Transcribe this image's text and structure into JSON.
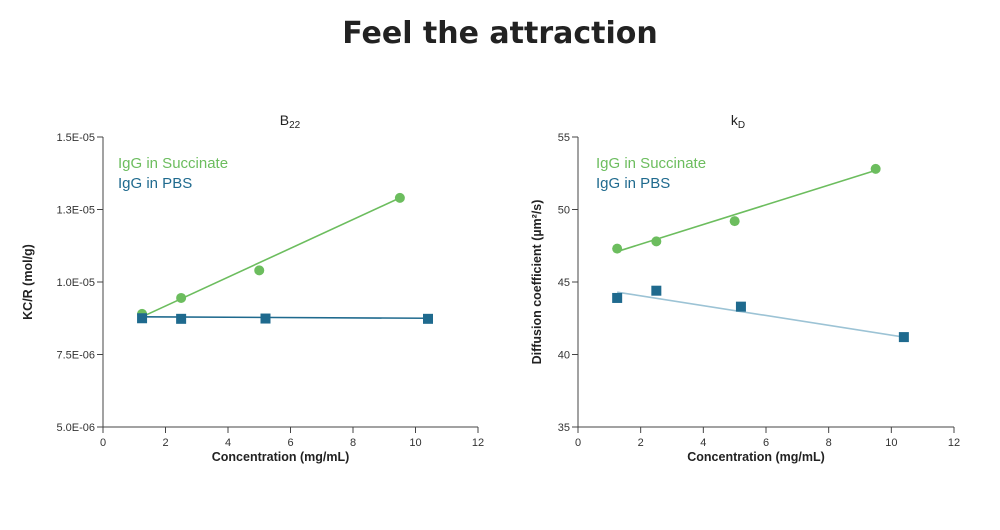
{
  "page": {
    "title": "Feel the attraction"
  },
  "chart_data": [
    {
      "type": "scatter",
      "title_main": "B",
      "title_sub": "22",
      "xlabel": "Concentration (mg/mL)",
      "ylabel": "KC/R (mol/g)",
      "xlim": [
        0,
        12
      ],
      "ylim": [
        5e-06,
        1.5e-05
      ],
      "x_ticks": [
        0,
        2,
        4,
        6,
        8,
        10,
        12
      ],
      "y_ticks": [
        5e-06,
        7.5e-06,
        1e-05,
        1.25e-05,
        1.5e-05
      ],
      "y_tick_labels": [
        "5.0E-06",
        "7.5E-06",
        "1.0E-05",
        "1.3E-05",
        "1.5E-05"
      ],
      "grid": false,
      "legend": "top-left",
      "series": [
        {
          "name": "IgG in Succinate",
          "color": "#6cbd5e",
          "marker": "circle",
          "x": [
            1.25,
            2.5,
            5.0,
            9.5
          ],
          "y": [
            8.9e-06,
            9.45e-06,
            1.04e-05,
            1.29e-05
          ],
          "fit": [
            [
              1.25,
              8.8e-06
            ],
            [
              9.5,
              1.29e-05
            ]
          ]
        },
        {
          "name": "IgG in PBS",
          "color": "#1f6a8e",
          "line_color": "#1f6a8e",
          "marker": "square",
          "x": [
            1.25,
            2.5,
            5.2,
            10.4
          ],
          "y": [
            8.75e-06,
            8.73e-06,
            8.74e-06,
            8.73e-06
          ],
          "fit": [
            [
              1.25,
              8.8e-06
            ],
            [
              10.4,
              8.75e-06
            ]
          ]
        }
      ]
    },
    {
      "type": "scatter",
      "title_main": "k",
      "title_sub": "D",
      "xlabel": "Concentration (mg/mL)",
      "ylabel": "Diffusion coefficient (µm²/s)",
      "xlim": [
        0,
        12
      ],
      "ylim": [
        35,
        55
      ],
      "x_ticks": [
        0,
        2,
        4,
        6,
        8,
        10,
        12
      ],
      "y_ticks": [
        35,
        40,
        45,
        50,
        55
      ],
      "y_tick_labels": [
        "35",
        "40",
        "45",
        "50",
        "55"
      ],
      "grid": false,
      "legend": "top-left",
      "series": [
        {
          "name": "IgG in Succinate",
          "color": "#6cbd5e",
          "marker": "circle",
          "x": [
            1.25,
            2.5,
            5.0,
            9.5
          ],
          "y": [
            47.3,
            47.8,
            49.2,
            52.8
          ],
          "fit": [
            [
              1.25,
              47.1
            ],
            [
              9.5,
              52.7
            ]
          ]
        },
        {
          "name": "IgG in PBS",
          "color": "#1f6a8e",
          "line_color": "#9cc3d5",
          "marker": "square",
          "x": [
            1.25,
            2.5,
            5.2,
            10.4
          ],
          "y": [
            43.9,
            44.4,
            43.3,
            41.2
          ],
          "fit": [
            [
              1.25,
              44.3
            ],
            [
              10.4,
              41.2
            ]
          ]
        }
      ]
    }
  ]
}
